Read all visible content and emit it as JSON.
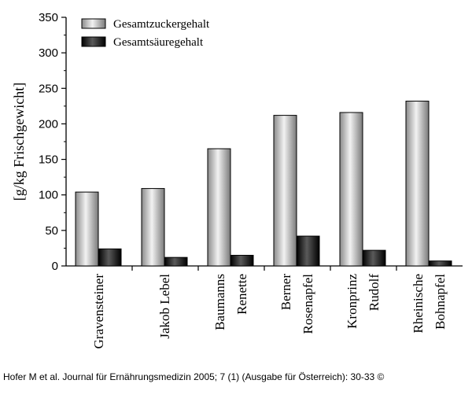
{
  "chart_data": {
    "type": "bar",
    "categories": [
      [
        "Gravensteiner"
      ],
      [
        "Jakob Lebel"
      ],
      [
        "Baumanns",
        "Renette"
      ],
      [
        "Berner",
        "Rosenapfel"
      ],
      [
        "Kronprinz",
        "Rudolf"
      ],
      [
        "Rheinische",
        "Bohnapfel"
      ]
    ],
    "series": [
      {
        "name": "Gesamtzuckergehalt",
        "values": [
          104,
          109,
          165,
          212,
          216,
          232
        ],
        "color": "#b8b8b8"
      },
      {
        "name": "Gesamtsäuregehalt",
        "values": [
          24,
          12,
          15,
          42,
          22,
          7
        ],
        "color": "#1a1a1a"
      }
    ],
    "ylabel": "[g/kg Frischgewicht]",
    "ylim": [
      0,
      350
    ],
    "yticks": [
      0,
      50,
      100,
      150,
      200,
      250,
      300,
      350
    ],
    "legend": "top-left",
    "grid": false
  },
  "credit": "Hofer M et al. Journal für Ernährungsmedizin 2005; 7 (1) (Ausgabe für Österreich): 30-33 ©"
}
